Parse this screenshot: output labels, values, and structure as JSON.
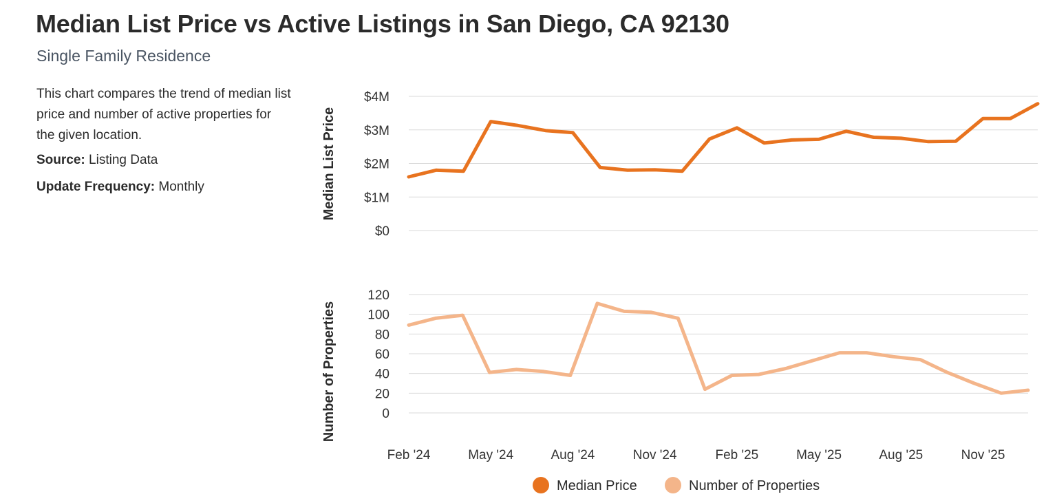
{
  "header": {
    "title": "Median List Price vs Active Listings in San Diego, CA 92130",
    "subtitle": "Single Family Residence"
  },
  "info": {
    "description": "This chart compares the trend of median list price and number of active properties for the given location.",
    "source_label": "Source:",
    "source_value": "Listing Data",
    "frequency_label": "Update Frequency:",
    "frequency_value": "Monthly"
  },
  "colors": {
    "price": "#E8731F",
    "properties": "#F4B58A",
    "grid": "#d9d9d9"
  },
  "chart_data": {
    "type": "line",
    "categories": [
      "Feb '24",
      "Mar '24",
      "Apr '24",
      "May '24",
      "Jun '24",
      "Jul '24",
      "Aug '24",
      "Sep '24",
      "Oct '24",
      "Nov '24",
      "Dec '24",
      "Jan '25",
      "Feb '25",
      "Mar '25",
      "Apr '25",
      "May '25",
      "Jun '25",
      "Jul '25",
      "Aug '25",
      "Sep '25",
      "Oct '25",
      "Nov '25",
      "Dec '25",
      "Jan '26"
    ],
    "x_tick_labels": [
      "Feb '24",
      "May '24",
      "Aug '24",
      "Nov '24",
      "Feb '25",
      "May '25",
      "Aug '25",
      "Nov '25"
    ],
    "series": [
      {
        "name": "Median Price",
        "values": [
          1600000,
          1800000,
          1770000,
          3250000,
          3130000,
          2980000,
          2920000,
          1880000,
          1800000,
          1810000,
          1770000,
          2730000,
          3060000,
          2610000,
          2700000,
          2720000,
          2960000,
          2780000,
          2750000,
          2650000,
          2660000,
          3340000,
          3340000,
          3780000
        ]
      },
      {
        "name": "Number of Properties",
        "values": [
          89,
          96,
          99,
          41,
          44,
          42,
          38,
          111,
          103,
          102,
          96,
          24,
          38,
          39,
          45,
          53,
          61,
          61,
          57,
          54,
          41,
          30,
          20,
          23
        ]
      }
    ],
    "panels": [
      {
        "ylabel": "Median List Price",
        "ylim": [
          0,
          4000000
        ],
        "yticks": [
          "$0",
          "$1M",
          "$2M",
          "$3M",
          "$4M"
        ]
      },
      {
        "ylabel": "Number of Properties",
        "ylim": [
          0,
          120
        ],
        "yticks": [
          "0",
          "20",
          "40",
          "60",
          "80",
          "100",
          "120"
        ]
      }
    ],
    "grid": true,
    "legend_position": "bottom-center"
  }
}
